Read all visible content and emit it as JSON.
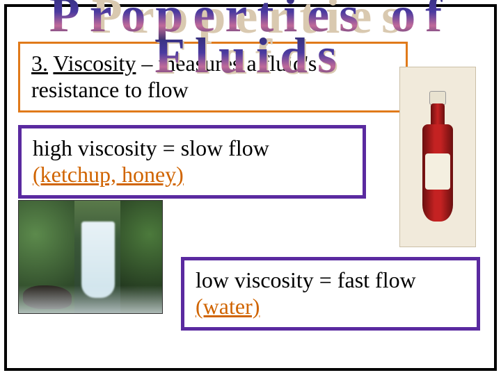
{
  "title": {
    "line1": "Properties of",
    "line2": "Fluids"
  },
  "definition": {
    "number": "3.",
    "term": "Viscosity",
    "rest": " – measures a fluid's resistance to flow"
  },
  "high": {
    "statement": "high viscosity = slow flow",
    "examples": "(ketchup, honey)"
  },
  "low": {
    "statement": "low viscosity = fast flow",
    "examples": "(water)"
  },
  "colors": {
    "box1_border": "#e07a1a",
    "box23_border": "#5a2aa0",
    "example_text": "#d06400",
    "frame": "#000000"
  }
}
